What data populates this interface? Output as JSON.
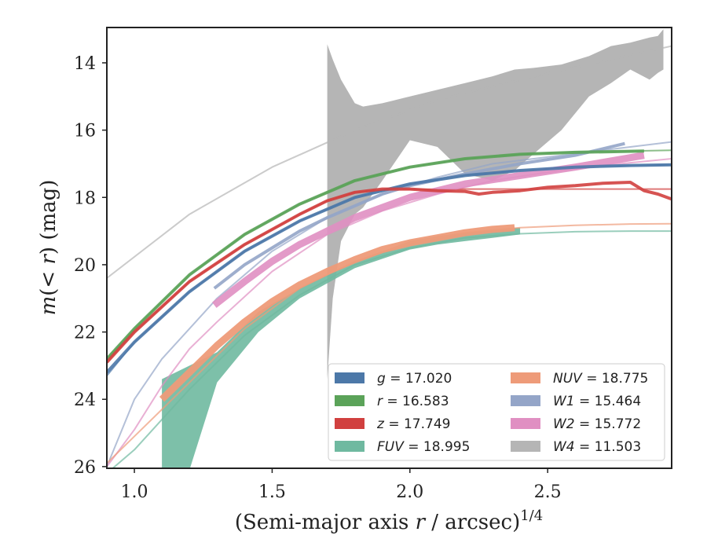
{
  "chart_data": {
    "type": "line",
    "xlabel": "(Semi-major axis r / arcsec)^1/4",
    "ylabel": "m(< r) (mag)",
    "xlim": [
      0.9,
      2.95
    ],
    "ylim": [
      26.05,
      12.95
    ],
    "y_inverted": true,
    "grid": false,
    "legend_location": "lower-right",
    "x_ticks": [
      1.0,
      1.5,
      2.0,
      2.5
    ],
    "y_ticks": [
      14,
      16,
      18,
      20,
      22,
      24,
      26
    ],
    "x_tick_labels": [
      "1.0",
      "1.5",
      "2.0",
      "2.5"
    ],
    "y_tick_labels": [
      "14",
      "16",
      "18",
      "20",
      "22",
      "24",
      "26"
    ],
    "series": [
      {
        "name": "W4",
        "label": "W4 = 11.503",
        "color": "#b5b5b5",
        "model_x": [
          0.9,
          1.2,
          1.5,
          1.8,
          2.1,
          2.4,
          2.7,
          2.95
        ],
        "model_y": [
          20.4,
          18.5,
          17.1,
          16.0,
          15.1,
          14.5,
          13.95,
          13.5
        ],
        "band_x": [
          1.7,
          1.72,
          1.75,
          1.8,
          1.83,
          1.9,
          2.0,
          2.1,
          2.2,
          2.3,
          2.38,
          2.45,
          2.55,
          2.65,
          2.73,
          2.8,
          2.87,
          2.9,
          2.92
        ],
        "band_upper": [
          13.45,
          13.9,
          14.5,
          15.2,
          15.3,
          15.2,
          15.0,
          14.8,
          14.6,
          14.4,
          14.2,
          14.15,
          14.05,
          13.8,
          13.5,
          13.4,
          13.25,
          13.2,
          13.0
        ],
        "band_lower": [
          23.4,
          21.0,
          19.3,
          18.5,
          18.3,
          17.5,
          16.3,
          16.5,
          17.3,
          17.5,
          17.2,
          16.7,
          16.0,
          15.0,
          14.6,
          14.2,
          14.5,
          14.3,
          14.2
        ]
      },
      {
        "name": "W1",
        "label": "W1 = 15.464",
        "color": "#94a5c8",
        "model_x": [
          0.9,
          1.0,
          1.1,
          1.2,
          1.3,
          1.5,
          1.7,
          1.9,
          2.1,
          2.3,
          2.5,
          2.7,
          2.95
        ],
        "model_y": [
          26.0,
          24.0,
          22.8,
          21.9,
          21.0,
          19.6,
          18.6,
          17.9,
          17.4,
          17.0,
          16.8,
          16.6,
          16.35
        ],
        "obs_x": [
          1.29,
          1.4,
          1.5,
          1.6,
          1.7,
          1.8,
          1.9,
          2.0,
          2.2,
          2.4,
          2.6,
          2.78
        ],
        "obs_y": [
          20.7,
          20.0,
          19.5,
          19.0,
          18.6,
          18.25,
          17.9,
          17.65,
          17.3,
          17.0,
          16.75,
          16.4
        ]
      },
      {
        "name": "W2",
        "label": "W2 = 15.772",
        "color": "#e08fc2",
        "model_x": [
          0.9,
          1.0,
          1.1,
          1.2,
          1.3,
          1.5,
          1.7,
          1.9,
          2.1,
          2.3,
          2.5,
          2.7,
          2.95
        ],
        "model_y": [
          26.0,
          24.9,
          23.6,
          22.5,
          21.7,
          20.2,
          19.1,
          18.4,
          17.9,
          17.5,
          17.25,
          17.05,
          16.85
        ],
        "obs_x": [
          1.29,
          1.4,
          1.5,
          1.6,
          1.7,
          1.8,
          1.9,
          2.0,
          2.2,
          2.4,
          2.6,
          2.85
        ],
        "obs_y": [
          21.2,
          20.5,
          19.9,
          19.4,
          19.0,
          18.6,
          18.3,
          18.0,
          17.6,
          17.35,
          17.1,
          16.75
        ]
      },
      {
        "name": "g",
        "label": "g = 17.020",
        "color": "#4c78a8",
        "model_x": [
          0.9,
          1.0,
          1.2,
          1.4,
          1.6,
          1.8,
          2.0,
          2.2,
          2.4,
          2.6,
          2.8,
          2.95
        ],
        "model_y": [
          23.3,
          22.3,
          20.8,
          19.6,
          18.7,
          18.0,
          17.6,
          17.35,
          17.2,
          17.1,
          17.05,
          17.03
        ],
        "obs_x": [
          0.9,
          1.0,
          1.2,
          1.4,
          1.6,
          1.8,
          2.0,
          2.2,
          2.4,
          2.6,
          2.8,
          2.95
        ],
        "obs_y": [
          23.2,
          22.3,
          20.8,
          19.6,
          18.7,
          18.0,
          17.6,
          17.35,
          17.2,
          17.1,
          17.05,
          17.03
        ]
      },
      {
        "name": "r",
        "label": "r = 16.583",
        "color": "#5ba359",
        "model_x": [
          0.9,
          1.0,
          1.2,
          1.4,
          1.6,
          1.8,
          2.0,
          2.2,
          2.4,
          2.6,
          2.8,
          2.95
        ],
        "model_y": [
          22.8,
          21.9,
          20.3,
          19.1,
          18.2,
          17.5,
          17.1,
          16.85,
          16.72,
          16.65,
          16.62,
          16.6
        ],
        "obs_x": [
          0.9,
          1.0,
          1.2,
          1.4,
          1.6,
          1.8,
          2.0,
          2.2,
          2.4,
          2.6,
          2.85
        ],
        "obs_y": [
          22.8,
          21.9,
          20.3,
          19.1,
          18.2,
          17.5,
          17.1,
          16.85,
          16.72,
          16.66,
          16.62
        ]
      },
      {
        "name": "z",
        "label": "z = 17.749",
        "color": "#d1403f",
        "model_x": [
          0.9,
          1.0,
          1.2,
          1.4,
          1.6,
          1.7,
          1.8,
          1.9,
          2.0,
          2.2,
          2.4,
          2.6,
          2.8,
          2.95
        ],
        "model_y": [
          22.9,
          22.0,
          20.5,
          19.4,
          18.5,
          18.1,
          17.85,
          17.78,
          17.76,
          17.75,
          17.75,
          17.75,
          17.75,
          17.75
        ],
        "obs_x": [
          0.9,
          1.0,
          1.2,
          1.4,
          1.6,
          1.7,
          1.8,
          1.9,
          2.0,
          2.1,
          2.2,
          2.25,
          2.3,
          2.4,
          2.5,
          2.6,
          2.7,
          2.8,
          2.85,
          2.9,
          2.95
        ],
        "obs_y": [
          22.9,
          22.0,
          20.5,
          19.4,
          18.5,
          18.1,
          17.85,
          17.75,
          17.75,
          17.8,
          17.82,
          17.9,
          17.85,
          17.8,
          17.7,
          17.65,
          17.58,
          17.55,
          17.8,
          17.9,
          18.05
        ]
      },
      {
        "name": "NUV",
        "label": "NUV = 18.775",
        "color": "#ee9b79",
        "model_x": [
          0.9,
          1.0,
          1.1,
          1.2,
          1.3,
          1.4,
          1.6,
          1.8,
          2.0,
          2.2,
          2.4,
          2.6,
          2.8,
          2.95
        ],
        "model_y": [
          25.9,
          25.1,
          24.3,
          23.5,
          22.7,
          21.9,
          20.7,
          19.9,
          19.35,
          19.05,
          18.9,
          18.83,
          18.79,
          18.78
        ],
        "obs_x": [
          1.1,
          1.2,
          1.3,
          1.4,
          1.5,
          1.6,
          1.7,
          1.8,
          1.9,
          2.0,
          2.1,
          2.2,
          2.3,
          2.38
        ],
        "obs_y": [
          24.0,
          23.2,
          22.4,
          21.7,
          21.1,
          20.6,
          20.2,
          19.85,
          19.55,
          19.35,
          19.2,
          19.05,
          18.95,
          18.9
        ]
      },
      {
        "name": "FUV",
        "label": "FUV = 18.995",
        "color": "#6fb9a0",
        "model_x": [
          0.9,
          1.0,
          1.1,
          1.2,
          1.3,
          1.4,
          1.6,
          1.8,
          2.0,
          2.2,
          2.4,
          2.6,
          2.8,
          2.95
        ],
        "model_y": [
          26.2,
          25.5,
          24.6,
          23.7,
          22.9,
          22.1,
          20.9,
          20.0,
          19.5,
          19.2,
          19.08,
          19.02,
          19.0,
          19.0
        ],
        "band_x": [
          1.1,
          1.2,
          1.3,
          1.45,
          1.6,
          1.8,
          2.0,
          2.1,
          2.2,
          2.3,
          2.4
        ],
        "band_upper": [
          23.4,
          23.0,
          22.6,
          21.4,
          20.7,
          19.9,
          19.3,
          19.15,
          19.05,
          18.95,
          18.9
        ],
        "band_lower": [
          26.1,
          26.1,
          23.5,
          22.0,
          21.0,
          20.1,
          19.55,
          19.4,
          19.3,
          19.2,
          19.1
        ]
      }
    ],
    "legend": [
      {
        "label": "g = 17.020",
        "color": "#4c78a8"
      },
      {
        "label": "r = 16.583",
        "color": "#5ba359"
      },
      {
        "label": "z = 17.749",
        "color": "#d1403f"
      },
      {
        "label": "FUV = 18.995",
        "color": "#6fb9a0"
      },
      {
        "label": "NUV = 18.775",
        "color": "#ee9b79"
      },
      {
        "label": "W1 = 15.464",
        "color": "#94a5c8"
      },
      {
        "label": "W2 = 15.772",
        "color": "#e08fc2"
      },
      {
        "label": "W4 = 11.503",
        "color": "#b5b5b5"
      }
    ]
  }
}
